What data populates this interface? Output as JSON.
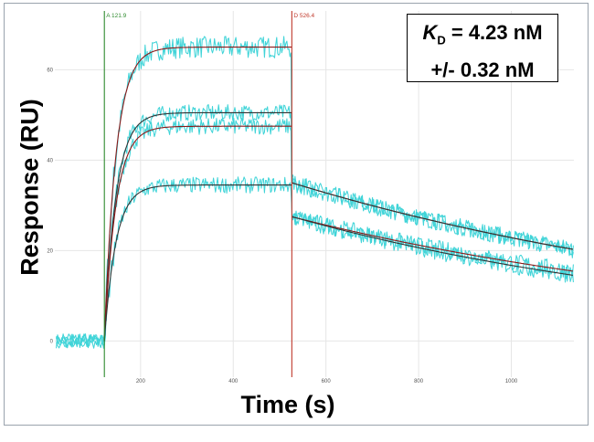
{
  "chart_data": {
    "type": "line",
    "xlabel": "Time (s)",
    "ylabel": "Response (RU)",
    "xlim": [
      15,
      1135
    ],
    "ylim": [
      -8,
      73
    ],
    "xticks": [
      200,
      400,
      600,
      800,
      1000
    ],
    "yticks": [
      0,
      20,
      40,
      60
    ],
    "grid": true,
    "markers": [
      {
        "label": "A 121.9",
        "x": 121.9,
        "color": "#2e8b2e"
      },
      {
        "label": "D 526.4",
        "x": 526.4,
        "color": "#c0392b"
      }
    ],
    "annotation": {
      "kd_symbol": "K",
      "kd_subscript": "D",
      "kd_value": " = 4.23 nM",
      "kd_error": "+/- 0.32 nM"
    },
    "association_start": 121.9,
    "dissociation_start": 526.4,
    "series": [
      {
        "values": {
          "plateau": 65,
          "kon_rate": 0.04,
          "koff_rate": 0.0009,
          "dissociation_start_value": 35
        }
      },
      {
        "values": {
          "plateau": 50.5,
          "kon_rate": 0.04,
          "koff_rate": 0.0009,
          "dissociation_start_value": 35
        }
      },
      {
        "values": {
          "plateau": 47.5,
          "kon_rate": 0.04,
          "koff_rate": 0.00095,
          "dissociation_start_value": 27.5
        }
      },
      {
        "values": {
          "plateau": 34.5,
          "kon_rate": 0.04,
          "koff_rate": 0.00105,
          "dissociation_start_value": 27.5
        }
      }
    ],
    "colors": {
      "raw": "#40d4d8",
      "fit": "#8b1a1a",
      "fit_dark": "#333333",
      "grid": "#e6e6e6"
    }
  }
}
